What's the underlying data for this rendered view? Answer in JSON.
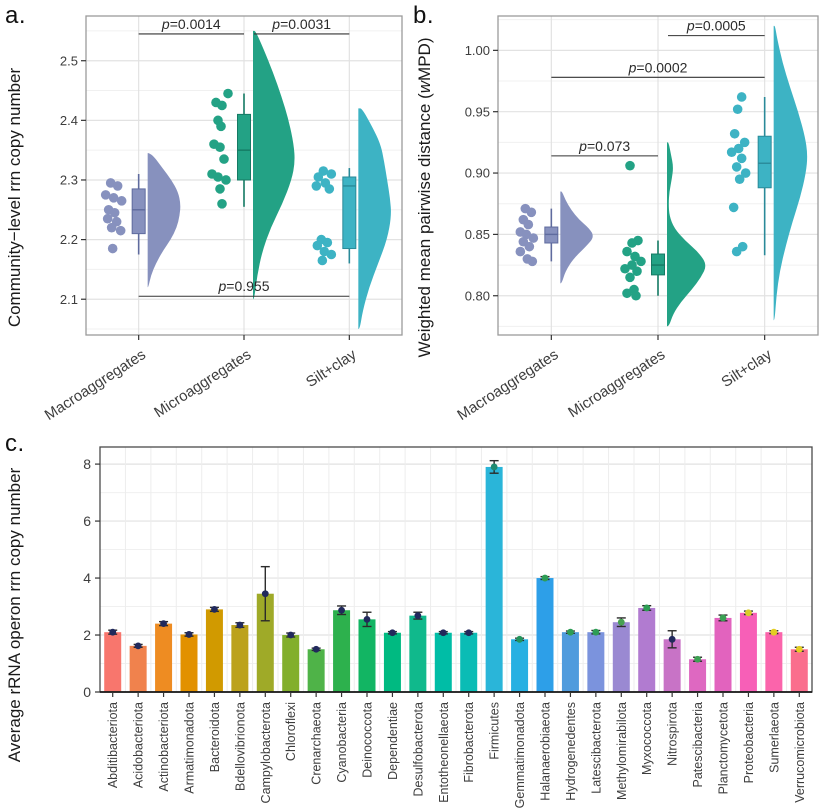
{
  "panels": {
    "a": {
      "tag": "a."
    },
    "b": {
      "tag": "b."
    },
    "c": {
      "tag": "c."
    }
  },
  "chart_data": [
    {
      "panel": "a",
      "type": "raincloud",
      "ylabel_pre": "Community−level rrn copy number",
      "ylabel_it": "",
      "ylabel_post": "",
      "ylim": [
        2.04,
        2.575
      ],
      "yticks": {
        "values": [
          2.1,
          2.2,
          2.3,
          2.4,
          2.5
        ],
        "labels": [
          "2.1",
          "2.2",
          "2.3",
          "2.4",
          "2.5"
        ]
      },
      "yminor": [
        2.05,
        2.15,
        2.25,
        2.35,
        2.45,
        2.55
      ],
      "categories": [
        "Macroaggregates",
        "Microaggregates",
        "Silt+clay"
      ],
      "groups": [
        {
          "name": "Macroaggregates",
          "color": "#8791BE",
          "dark": "#5F6B9E",
          "dots": [
            [
              2.295,
              -28
            ],
            [
              2.29,
              -21
            ],
            [
              2.275,
              -33
            ],
            [
              2.27,
              -25
            ],
            [
              2.265,
              -17
            ],
            [
              2.25,
              -30
            ],
            [
              2.245,
              -24
            ],
            [
              2.235,
              -31
            ],
            [
              2.23,
              -22
            ],
            [
              2.22,
              -27
            ],
            [
              2.215,
              -18
            ],
            [
              2.185,
              -26
            ]
          ],
          "box": {
            "lo": 2.175,
            "q1": 2.21,
            "med": 2.25,
            "q3": 2.285,
            "hi": 2.31
          },
          "violin": {
            "maxw": 33,
            "profile": [
              [
                2.12,
                0.02
              ],
              [
                2.14,
                0.1
              ],
              [
                2.16,
                0.25
              ],
              [
                2.18,
                0.45
              ],
              [
                2.2,
                0.7
              ],
              [
                2.22,
                0.88
              ],
              [
                2.24,
                0.97
              ],
              [
                2.26,
                1.0
              ],
              [
                2.28,
                0.92
              ],
              [
                2.3,
                0.72
              ],
              [
                2.32,
                0.45
              ],
              [
                2.34,
                0.18
              ],
              [
                2.345,
                0.04
              ]
            ]
          }
        },
        {
          "name": "Microaggregates",
          "color": "#23A285",
          "dark": "#157A64",
          "dots": [
            [
              2.445,
              -16
            ],
            [
              2.43,
              -28
            ],
            [
              2.425,
              -22
            ],
            [
              2.4,
              -26
            ],
            [
              2.39,
              -23
            ],
            [
              2.36,
              -30
            ],
            [
              2.355,
              -24
            ],
            [
              2.335,
              -20
            ],
            [
              2.31,
              -32
            ],
            [
              2.305,
              -26
            ],
            [
              2.3,
              -18
            ],
            [
              2.285,
              -24
            ],
            [
              2.26,
              -22
            ]
          ],
          "box": {
            "lo": 2.255,
            "q1": 2.3,
            "med": 2.35,
            "q3": 2.41,
            "hi": 2.445
          },
          "violin": {
            "maxw": 42,
            "profile": [
              [
                2.1,
                0.03
              ],
              [
                2.14,
                0.1
              ],
              [
                2.18,
                0.22
              ],
              [
                2.22,
                0.42
              ],
              [
                2.26,
                0.7
              ],
              [
                2.3,
                0.92
              ],
              [
                2.33,
                1.0
              ],
              [
                2.36,
                0.97
              ],
              [
                2.4,
                0.85
              ],
              [
                2.44,
                0.68
              ],
              [
                2.48,
                0.48
              ],
              [
                2.52,
                0.25
              ],
              [
                2.55,
                0.06
              ]
            ]
          }
        },
        {
          "name": "Silt+clay",
          "color": "#3DB3C4",
          "dark": "#2A8A99",
          "dots": [
            [
              2.315,
              -26
            ],
            [
              2.31,
              -18
            ],
            [
              2.305,
              -31
            ],
            [
              2.295,
              -24
            ],
            [
              2.29,
              -33
            ],
            [
              2.285,
              -20
            ],
            [
              2.2,
              -28
            ],
            [
              2.195,
              -22
            ],
            [
              2.19,
              -32
            ],
            [
              2.18,
              -25
            ],
            [
              2.175,
              -18
            ],
            [
              2.165,
              -27
            ]
          ],
          "box": {
            "lo": 2.16,
            "q1": 2.185,
            "med": 2.29,
            "q3": 2.305,
            "hi": 2.32
          },
          "violin": {
            "maxw": 36,
            "profile": [
              [
                2.05,
                0.04
              ],
              [
                2.08,
                0.12
              ],
              [
                2.12,
                0.3
              ],
              [
                2.16,
                0.55
              ],
              [
                2.2,
                0.8
              ],
              [
                2.24,
                0.92
              ],
              [
                2.27,
                0.88
              ],
              [
                2.3,
                0.8
              ],
              [
                2.33,
                0.72
              ],
              [
                2.36,
                0.62
              ],
              [
                2.39,
                0.38
              ],
              [
                2.42,
                0.1
              ]
            ]
          }
        }
      ],
      "pvalues": [
        {
          "between": [
            0,
            1
          ],
          "y": 2.545,
          "p": "0.0014"
        },
        {
          "between": [
            1,
            2
          ],
          "y": 2.545,
          "p": "0.0031"
        },
        {
          "between": [
            0,
            2
          ],
          "y": 2.105,
          "p": "0.955"
        }
      ]
    },
    {
      "panel": "b",
      "type": "raincloud",
      "ylabel_pre": "Weighted mean pairwise distance (",
      "ylabel_it": "w",
      "ylabel_post": "MPD)",
      "ylim": [
        0.768,
        1.028
      ],
      "yticks": {
        "values": [
          0.8,
          0.85,
          0.9,
          0.95,
          1.0
        ],
        "labels": [
          "0.80",
          "0.85",
          "0.90",
          "0.95",
          "1.00"
        ]
      },
      "yminor": [
        0.775,
        0.825,
        0.875,
        0.925,
        0.975,
        1.025
      ],
      "categories": [
        "Macroaggregates",
        "Microaggregates",
        "Silt+clay"
      ],
      "groups": [
        {
          "name": "Macroaggregates",
          "color": "#8791BE",
          "dark": "#5F6B9E",
          "dots": [
            [
              0.871,
              -26
            ],
            [
              0.868,
              -20
            ],
            [
              0.862,
              -28
            ],
            [
              0.858,
              -23
            ],
            [
              0.852,
              -31
            ],
            [
              0.85,
              -25
            ],
            [
              0.847,
              -18
            ],
            [
              0.844,
              -28
            ],
            [
              0.84,
              -22
            ],
            [
              0.836,
              -31
            ],
            [
              0.83,
              -24
            ],
            [
              0.828,
              -19
            ]
          ],
          "box": {
            "lo": 0.828,
            "q1": 0.843,
            "med": 0.85,
            "q3": 0.856,
            "hi": 0.871
          },
          "violin": {
            "maxw": 34,
            "profile": [
              [
                0.81,
                0.04
              ],
              [
                0.82,
                0.15
              ],
              [
                0.83,
                0.38
              ],
              [
                0.84,
                0.75
              ],
              [
                0.848,
                1.0
              ],
              [
                0.855,
                0.85
              ],
              [
                0.862,
                0.55
              ],
              [
                0.87,
                0.32
              ],
              [
                0.878,
                0.15
              ],
              [
                0.885,
                0.05
              ]
            ]
          }
        },
        {
          "name": "Microaggregates",
          "color": "#23A285",
          "dark": "#157A64",
          "dots": [
            [
              0.906,
              -28
            ],
            [
              0.845,
              -20
            ],
            [
              0.843,
              -26
            ],
            [
              0.836,
              -31
            ],
            [
              0.832,
              -23
            ],
            [
              0.828,
              -17
            ],
            [
              0.825,
              -26
            ],
            [
              0.822,
              -33
            ],
            [
              0.82,
              -21
            ],
            [
              0.815,
              -28
            ],
            [
              0.805,
              -24
            ],
            [
              0.802,
              -31
            ],
            [
              0.8,
              -22
            ]
          ],
          "box": {
            "lo": 0.8,
            "q1": 0.817,
            "med": 0.825,
            "q3": 0.834,
            "hi": 0.845
          },
          "violin": {
            "maxw": 40,
            "profile": [
              [
                0.775,
                0.05
              ],
              [
                0.785,
                0.15
              ],
              [
                0.795,
                0.35
              ],
              [
                0.805,
                0.62
              ],
              [
                0.815,
                0.85
              ],
              [
                0.825,
                1.0
              ],
              [
                0.835,
                0.8
              ],
              [
                0.845,
                0.45
              ],
              [
                0.855,
                0.18
              ],
              [
                0.865,
                0.06
              ],
              [
                0.875,
                0.04
              ],
              [
                0.885,
                0.06
              ],
              [
                0.895,
                0.12
              ],
              [
                0.905,
                0.16
              ],
              [
                0.915,
                0.1
              ],
              [
                0.925,
                0.04
              ]
            ]
          }
        },
        {
          "name": "Silt+clay",
          "color": "#3DB3C4",
          "dark": "#2A8A99",
          "dots": [
            [
              0.962,
              -23
            ],
            [
              0.952,
              -27
            ],
            [
              0.932,
              -30
            ],
            [
              0.925,
              -20
            ],
            [
              0.92,
              -26
            ],
            [
              0.917,
              -33
            ],
            [
              0.912,
              -23
            ],
            [
              0.905,
              -28
            ],
            [
              0.9,
              -19
            ],
            [
              0.895,
              -25
            ],
            [
              0.872,
              -31
            ],
            [
              0.84,
              -22
            ],
            [
              0.836,
              -28
            ]
          ],
          "box": {
            "lo": 0.833,
            "q1": 0.888,
            "med": 0.908,
            "q3": 0.93,
            "hi": 0.962
          },
          "violin": {
            "maxw": 34,
            "profile": [
              [
                0.78,
                0.03
              ],
              [
                0.8,
                0.08
              ],
              [
                0.82,
                0.18
              ],
              [
                0.84,
                0.35
              ],
              [
                0.86,
                0.55
              ],
              [
                0.88,
                0.78
              ],
              [
                0.9,
                0.95
              ],
              [
                0.915,
                1.0
              ],
              [
                0.93,
                0.92
              ],
              [
                0.95,
                0.72
              ],
              [
                0.97,
                0.48
              ],
              [
                0.99,
                0.26
              ],
              [
                1.01,
                0.1
              ],
              [
                1.02,
                0.04
              ]
            ]
          }
        }
      ],
      "pvalues": [
        {
          "between": [
            0,
            1
          ],
          "y": 0.914,
          "p": "0.073"
        },
        {
          "between": [
            0,
            2
          ],
          "y": 0.978,
          "p": "0.0002"
        },
        {
          "between": [
            1,
            2
          ],
          "y": 1.012,
          "p": "0.0005"
        }
      ]
    },
    {
      "panel": "c",
      "type": "bar",
      "ylabel": "Average rRNA operon rrn copy number",
      "ylim": [
        0,
        8.6
      ],
      "yticks": {
        "values": [
          0,
          2,
          4,
          6,
          8
        ],
        "labels": [
          "0",
          "2",
          "4",
          "6",
          "8"
        ]
      },
      "yminor": [
        1,
        3,
        5,
        7
      ],
      "categories": [
        "Abditibacteriota",
        "Acidobacteriota",
        "Actinobacteriota",
        "Armatimonadota",
        "Bacteroidota",
        "Bdellovibrionota",
        "Campylobacterota",
        "Chloroflexi",
        "Crenarchaeota",
        "Cyanobacteria",
        "Deinococcota",
        "Dependentiae",
        "Desulfobacterota",
        "Entotheonellaeota",
        "Fibrobacterota",
        "Firmicutes",
        "Gemmatimonadota",
        "Halanaerobiaeota",
        "Hydrogenedentes",
        "Latescibacterota",
        "Methylomirabilota",
        "Myxococcota",
        "Nitrospirota",
        "Patescibacteria",
        "Planctomycetota",
        "Proteobacteria",
        "Sumerlaeota",
        "Verrucomicrobiota"
      ],
      "values": [
        2.1,
        1.62,
        2.4,
        2.02,
        2.9,
        2.35,
        3.45,
        2.0,
        1.5,
        2.87,
        2.55,
        2.08,
        2.68,
        2.08,
        2.08,
        7.9,
        1.85,
        4.0,
        2.1,
        2.1,
        2.45,
        2.95,
        1.85,
        1.15,
        2.6,
        2.78,
        2.1,
        1.5
      ],
      "errors": [
        0.07,
        0.05,
        0.07,
        0.06,
        0.07,
        0.08,
        0.95,
        0.07,
        0.04,
        0.15,
        0.25,
        0.04,
        0.12,
        0.04,
        0.04,
        0.22,
        0.04,
        0.05,
        0.04,
        0.06,
        0.15,
        0.08,
        0.3,
        0.07,
        0.1,
        0.06,
        0.05,
        0.07
      ],
      "bar_colors": [
        "#F8766D",
        "#F0824D",
        "#EE8C22",
        "#E29100",
        "#D19A00",
        "#BCA21C",
        "#9FAA28",
        "#82AF2C",
        "#4FB348",
        "#2DB14D",
        "#12B563",
        "#00BA81",
        "#10B98C",
        "#00BDA6",
        "#0ABCB5",
        "#2AB5D9",
        "#27B0E2",
        "#2D9FE8",
        "#4F9BDD",
        "#7B93DD",
        "#9A89D2",
        "#B17BD0",
        "#C873C6",
        "#DE68C1",
        "#E263BE",
        "#F75FB7",
        "#FB64AB",
        "#FA6E8D"
      ],
      "marker_colors": [
        "#21295C",
        "#21295C",
        "#21295C",
        "#21295C",
        "#21295C",
        "#21295C",
        "#21295C",
        "#21295C",
        "#21295C",
        "#21295C",
        "#21295C",
        "#21295C",
        "#21295C",
        "#21295C",
        "#21295C",
        "#1F8A70",
        "#22945C",
        "#2E9D55",
        "#2E9D55",
        "#2E9D55",
        "#47A152",
        "#2E9D55",
        "#21295C",
        "#3FA054",
        "#3AA053",
        "#D9CB2A",
        "#E3CD22",
        "#E3CD22"
      ]
    }
  ]
}
